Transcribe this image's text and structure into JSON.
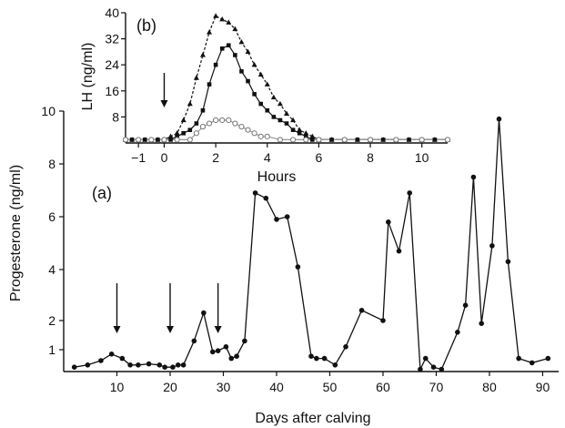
{
  "chart_data": [
    {
      "type": "line",
      "panel_label": "(a)",
      "xlabel": "Days after calving",
      "ylabel": "Progesterone (ng/ml)",
      "xlim": [
        0,
        93
      ],
      "x_ticks": [
        10,
        20,
        30,
        40,
        50,
        60,
        70,
        80,
        90
      ],
      "y_ticks": [
        1,
        2,
        4,
        6,
        8,
        10
      ],
      "y_scale": "nonlinear (1 and 2 stretched)",
      "grid": false,
      "annotations": {
        "arrows_at_day": [
          10,
          20,
          29
        ]
      },
      "series": [
        {
          "marker": "filled circle",
          "x": [
            2,
            4.5,
            7,
            9,
            11,
            12.5,
            14,
            16,
            18,
            19,
            20.5,
            21.5,
            22.5,
            24.5,
            26.3,
            28,
            29,
            30.5,
            31.5,
            32.5,
            34,
            36,
            38,
            40,
            42,
            44,
            46.5,
            47.5,
            49,
            51,
            53,
            56,
            60,
            61,
            63,
            65,
            67,
            68,
            69.5,
            71,
            74,
            75.5,
            77,
            78.5,
            80.5,
            81.8,
            83.5,
            85.5,
            88,
            91
          ],
          "y": [
            0.2,
            0.3,
            0.5,
            0.8,
            0.6,
            0.3,
            0.3,
            0.35,
            0.3,
            0.2,
            0.2,
            0.3,
            0.3,
            1.3,
            2.3,
            0.9,
            0.95,
            1.1,
            0.6,
            0.7,
            1.3,
            6.9,
            6.7,
            5.9,
            6.0,
            4.1,
            0.7,
            0.6,
            0.6,
            0.3,
            1.1,
            2.4,
            2.0,
            5.8,
            4.7,
            6.9,
            0.1,
            0.6,
            0.2,
            0.1,
            1.6,
            2.6,
            7.5,
            1.9,
            4.9,
            9.7,
            4.3,
            0.6,
            0.4,
            0.6
          ]
        }
      ]
    },
    {
      "type": "line",
      "panel_label": "(b)",
      "xlabel": "Hours",
      "ylabel": "LH (ng/ml)",
      "xlim": [
        -1.5,
        11
      ],
      "ylim": [
        0,
        40
      ],
      "x_ticks": [
        -1,
        0,
        2,
        4,
        6,
        8,
        10
      ],
      "y_ticks": [
        8,
        16,
        24,
        32,
        40
      ],
      "grid": false,
      "annotations": {
        "arrows_at_hour": [
          0
        ]
      },
      "series": [
        {
          "marker": "filled triangle",
          "x": [
            -1.5,
            -1.25,
            -1,
            -0.75,
            -0.5,
            -0.25,
            0,
            0.25,
            0.5,
            0.75,
            1,
            1.25,
            1.5,
            1.75,
            2,
            2.25,
            2.5,
            2.75,
            3,
            3.25,
            3.5,
            3.75,
            4,
            4.25,
            4.5,
            4.75,
            5,
            5.25,
            5.5,
            5.75,
            6,
            6.5,
            7,
            7.5,
            8,
            8.5,
            9,
            9.5,
            10,
            10.5,
            11
          ],
          "y": [
            1,
            1,
            1,
            1,
            1,
            1,
            1,
            2,
            3,
            7,
            12,
            20,
            27,
            34,
            39,
            38,
            37,
            35,
            31,
            28,
            24,
            21,
            18,
            14,
            12,
            9,
            7,
            4,
            3,
            2,
            1,
            1,
            1,
            1,
            1,
            1,
            1,
            1,
            1,
            1,
            1
          ]
        },
        {
          "marker": "filled square",
          "x": [
            -1.5,
            -1.25,
            -1,
            -0.75,
            -0.5,
            -0.25,
            0,
            0.25,
            0.5,
            0.75,
            1,
            1.25,
            1.5,
            1.75,
            2,
            2.25,
            2.5,
            2.75,
            3,
            3.25,
            3.5,
            3.75,
            4,
            4.25,
            4.5,
            4.75,
            5,
            5.25,
            5.5,
            5.75,
            6,
            6.5,
            7,
            7.5,
            8,
            8.5,
            9,
            9.5,
            10,
            10.5,
            11
          ],
          "y": [
            1,
            1,
            1,
            1,
            1,
            1,
            1,
            1,
            2,
            3,
            4,
            6,
            10,
            18,
            24,
            29,
            30,
            27,
            22,
            19,
            15,
            12,
            10,
            8,
            7,
            6,
            4,
            3,
            2,
            1,
            1,
            1,
            1,
            1,
            1,
            1,
            1,
            1,
            1,
            1,
            1
          ]
        },
        {
          "marker": "open circle",
          "x": [
            -1.5,
            -1,
            -0.5,
            0,
            0.5,
            1,
            1.25,
            1.5,
            1.75,
            2,
            2.25,
            2.5,
            2.75,
            3,
            3.25,
            3.5,
            3.75,
            4,
            4.5,
            5,
            5.5,
            6,
            7,
            8,
            9,
            10,
            11
          ],
          "y": [
            1,
            1,
            1,
            1,
            1,
            1,
            3,
            5,
            6,
            7,
            7,
            7,
            6,
            5,
            4,
            3,
            2,
            2,
            1,
            1,
            1,
            1,
            1,
            1,
            1,
            1,
            1
          ]
        }
      ]
    }
  ]
}
